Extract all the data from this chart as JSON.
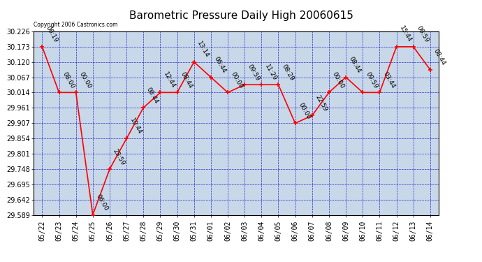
{
  "title": "Barometric Pressure Daily High 20060615",
  "copyright": "Copyright 2006 Castronics.com",
  "background_color": "#ffffff",
  "plot_bg_color": "#c8d8e8",
  "grid_color": "#0000cc",
  "line_color": "#ff0000",
  "marker_color": "#ff0000",
  "data_points": [
    {
      "date": "05/22",
      "value": 30.173,
      "label": "06:19"
    },
    {
      "date": "05/23",
      "value": 30.014,
      "label": "08:00"
    },
    {
      "date": "05/24",
      "value": 30.014,
      "label": "00:00"
    },
    {
      "date": "05/25",
      "value": 29.589,
      "label": "06:00"
    },
    {
      "date": "05/26",
      "value": 29.748,
      "label": "23:59"
    },
    {
      "date": "05/27",
      "value": 29.854,
      "label": "10:44"
    },
    {
      "date": "05/28",
      "value": 29.961,
      "label": "08:44"
    },
    {
      "date": "05/29",
      "value": 30.014,
      "label": "12:44"
    },
    {
      "date": "05/30",
      "value": 30.014,
      "label": "08:44"
    },
    {
      "date": "05/31",
      "value": 30.12,
      "label": "13:14"
    },
    {
      "date": "06/01",
      "value": 30.067,
      "label": "06:44"
    },
    {
      "date": "06/02",
      "value": 30.014,
      "label": "00:00"
    },
    {
      "date": "06/03",
      "value": 30.041,
      "label": "09:59"
    },
    {
      "date": "06/04",
      "value": 30.041,
      "label": "11:29"
    },
    {
      "date": "06/05",
      "value": 30.041,
      "label": "08:29"
    },
    {
      "date": "06/06",
      "value": 29.907,
      "label": "00:00"
    },
    {
      "date": "06/07",
      "value": 29.934,
      "label": "22:59"
    },
    {
      "date": "06/08",
      "value": 30.014,
      "label": "00:00"
    },
    {
      "date": "06/09",
      "value": 30.067,
      "label": "08:44"
    },
    {
      "date": "06/10",
      "value": 30.014,
      "label": "09:59"
    },
    {
      "date": "06/11",
      "value": 30.014,
      "label": "03:44"
    },
    {
      "date": "06/12",
      "value": 30.173,
      "label": "15:44"
    },
    {
      "date": "06/13",
      "value": 30.173,
      "label": "06:59"
    },
    {
      "date": "06/14",
      "value": 30.093,
      "label": "08:44"
    }
  ],
  "ylim": [
    29.589,
    30.226
  ],
  "yticks": [
    29.589,
    29.642,
    29.695,
    29.748,
    29.801,
    29.854,
    29.907,
    29.961,
    30.014,
    30.067,
    30.12,
    30.173,
    30.226
  ],
  "title_fontsize": 11,
  "tick_fontsize": 7,
  "label_fontsize": 6.5
}
